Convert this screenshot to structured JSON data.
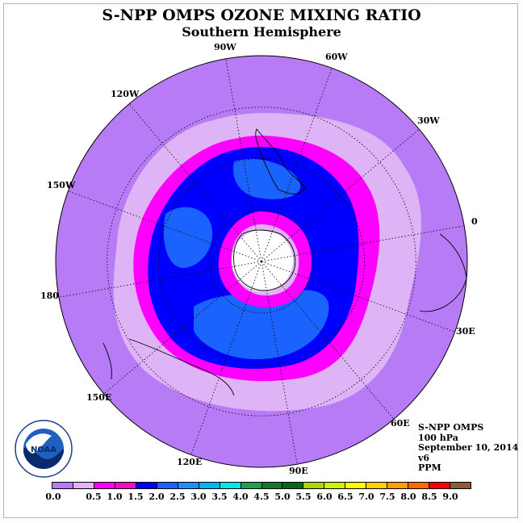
{
  "title": "S-NPP OMPS OZONE MIXING RATIO",
  "subtitle": "Southern Hemisphere",
  "longitude_labels": {
    "w90": "90W",
    "w60": "60W",
    "w30": "30W",
    "e0": "0",
    "e30": "30E",
    "e60": "60E",
    "e90": "90E",
    "e120": "120E",
    "e150": "150E",
    "l180": "180",
    "w150": "150W",
    "w120": "120W"
  },
  "info": {
    "instrument": "S-NPP OMPS",
    "pressure": "100 hPa",
    "date": "September 10, 2014",
    "version": "v6",
    "units": "PPM"
  },
  "colorbar": {
    "colors": [
      "#b77cf5",
      "#dfb4f7",
      "#ff00ff",
      "#f20cc8",
      "#0000ff",
      "#1a63ff",
      "#1e90ff",
      "#00b4f0",
      "#00e5e5",
      "#1fa04a",
      "#0f7a2e",
      "#006a18",
      "#a8d800",
      "#d0f000",
      "#ffff00",
      "#ffd200",
      "#ffa000",
      "#ff6a00",
      "#ff0000",
      "#8b5a3c"
    ],
    "ticks": [
      "0.0",
      "0.5",
      "1.0",
      "1.5",
      "2.0",
      "2.5",
      "3.0",
      "3.5",
      "4.0",
      "4.5",
      "5.0",
      "5.5",
      "6.0",
      "6.5",
      "7.0",
      "7.5",
      "8.0",
      "8.5",
      "9.0"
    ]
  },
  "map_colors": {
    "outer": "#b77cf5",
    "band_light": "#dfb4f7",
    "band_magenta": "#ff00ff",
    "ring_blue": "#0000ff",
    "patch_blue": "#1a63ff",
    "pole": "#ffffff"
  }
}
